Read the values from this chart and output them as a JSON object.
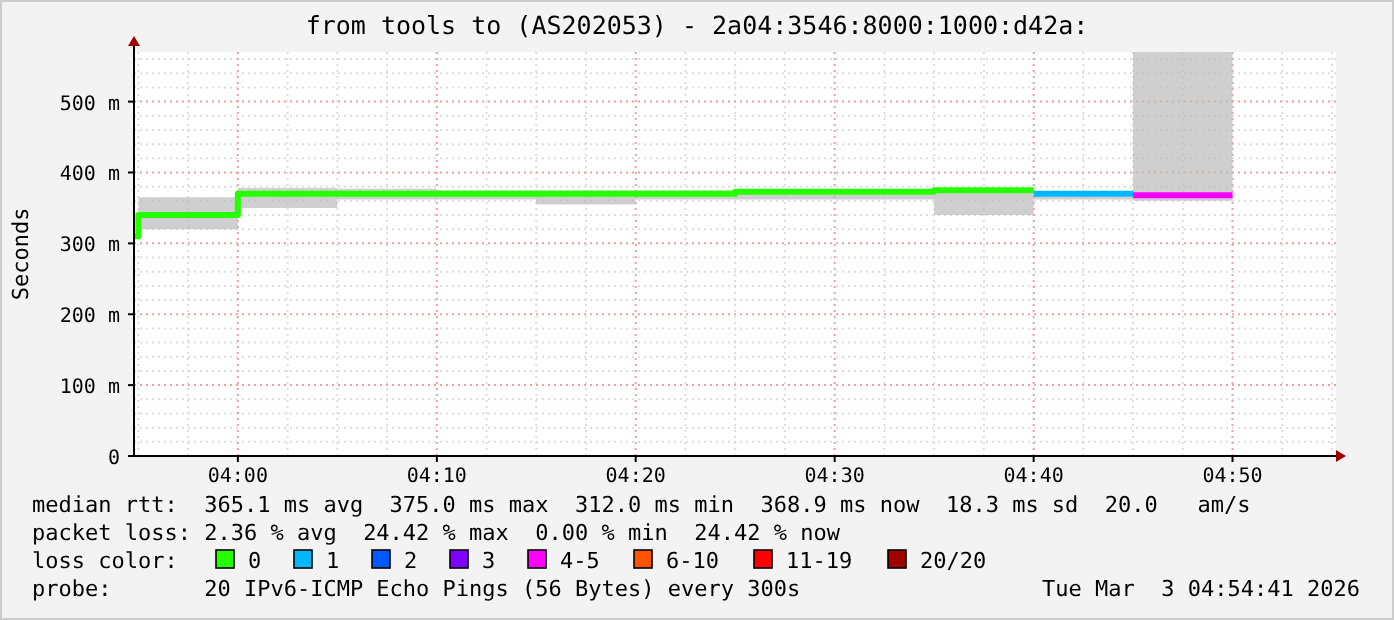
{
  "chart_data": {
    "type": "step",
    "title": "from tools to (AS202053) - 2a04:3546:8000:1000:d42a:",
    "ylabel": "Seconds",
    "legend_title": "loss color:",
    "legend": "bottom",
    "grid": true,
    "xlim": [
      3.913,
      4.92
    ],
    "xticks": [
      {
        "value": 4.0,
        "label": "04:00"
      },
      {
        "value": 4.1667,
        "label": "04:10"
      },
      {
        "value": 4.3333,
        "label": "04:20"
      },
      {
        "value": 4.5,
        "label": "04:30"
      },
      {
        "value": 4.6667,
        "label": "04:40"
      },
      {
        "value": 4.8333,
        "label": "04:50"
      }
    ],
    "ylim": [
      0,
      570
    ],
    "yticks": [
      {
        "value": 0,
        "label": "0"
      },
      {
        "value": 100,
        "label": "100 m"
      },
      {
        "value": 200,
        "label": "200 m"
      },
      {
        "value": 300,
        "label": "300 m"
      },
      {
        "value": 400,
        "label": "400 m"
      },
      {
        "value": 500,
        "label": "500 m"
      }
    ],
    "series": [
      {
        "name": "0",
        "color": "#26ff00",
        "x": [
          3.913,
          3.9167,
          4.0,
          4.0833,
          4.1667,
          4.25,
          4.3333,
          4.4167,
          4.5,
          4.5833,
          4.6667
        ],
        "values": [
          310,
          340,
          370,
          370,
          370,
          370,
          370,
          373,
          373,
          375,
          375
        ],
        "lower": [
          null,
          320,
          350,
          362,
          362,
          355,
          362,
          362,
          362,
          340,
          340
        ],
        "upper": [
          null,
          365,
          378,
          377,
          375,
          375,
          375,
          377,
          377,
          377,
          377
        ]
      },
      {
        "name": "1",
        "color": "#00b8ff",
        "x": [
          4.6667,
          4.75
        ],
        "values": [
          370,
          370
        ],
        "lower": [
          362,
          362
        ],
        "upper": [
          372,
          372
        ]
      },
      {
        "name": "2",
        "color": "#0059ff"
      },
      {
        "name": "3",
        "color": "#7e00ff"
      },
      {
        "name": "4-5",
        "color": "#ff00ff",
        "x": [
          4.75,
          4.8333
        ],
        "values": [
          368,
          368
        ],
        "lower": [
          360,
          360
        ],
        "upper": [
          570,
          570
        ]
      },
      {
        "name": "6-10",
        "color": "#ff5500"
      },
      {
        "name": "11-19",
        "color": "#ff0000"
      },
      {
        "name": "20/20",
        "color": "#a10000"
      }
    ],
    "annotations": [
      "median rtt:  365.1 ms avg  375.0 ms max  312.0 ms min  368.9 ms now  18.3 ms sd  20.0   am/s",
      "packet loss: 2.36 % avg  24.42 % max  0.00 % min  24.42 % now",
      "probe:       20 IPv6-ICMP Echo Pings (56 Bytes) every 300s",
      "Tue Mar  3 04:54:41 2026"
    ]
  }
}
